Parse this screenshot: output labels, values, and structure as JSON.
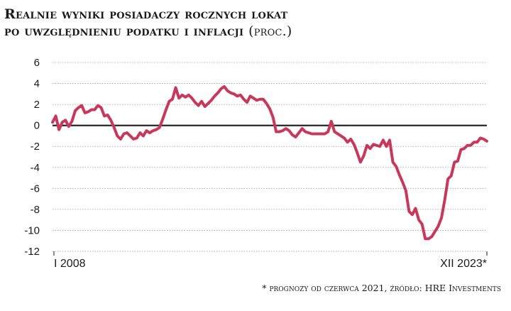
{
  "chart_data": {
    "type": "line",
    "title_line1": "Realnie wyniki posiadaczy rocznych lokat",
    "title_line2": "po uwzględnieniu podatku i inflacji",
    "title_unit": "(proc.)",
    "x_start_label": "I 2008",
    "x_end_label": "XII 2023*",
    "footnote": "* prognozy od czerwca 2021, źródło: HRE Investments",
    "ylim": [
      -12,
      6
    ],
    "yticks": [
      "6",
      "4",
      "2",
      "0",
      "-2",
      "-4",
      "-6",
      "-8",
      "-10",
      "-12"
    ],
    "grid": true,
    "line_color": "#c8385a",
    "zero_line_color": "#1a1a1a",
    "series": [
      {
        "values": [
          0.3,
          0.9,
          -0.4,
          0.3,
          0.5,
          -0.1,
          0.4,
          1.4,
          1.7,
          1.9,
          1.2,
          1.3,
          1.5,
          1.5,
          1.9,
          1.7,
          0.9,
          1.0,
          0.5,
          -0.2,
          -1.0,
          -1.3,
          -0.8,
          -0.7,
          -1.0,
          -1.3,
          -1.2,
          -0.7,
          -1.0,
          -0.5,
          -0.7,
          -0.5,
          -0.4,
          -0.2,
          0.6,
          1.5,
          2.3,
          2.5,
          3.6,
          2.6,
          2.9,
          2.7,
          2.9,
          2.6,
          2.2,
          1.9,
          2.3,
          1.8,
          2.1,
          2.4,
          2.8,
          3.1,
          3.5,
          3.7,
          3.3,
          3.1,
          3.0,
          2.8,
          2.9,
          2.5,
          2.2,
          2.8,
          2.6,
          2.4,
          2.5,
          2.5,
          2.1,
          1.6,
          0.8,
          -0.6,
          -0.6,
          -0.5,
          -0.3,
          -0.5,
          -0.9,
          -1.1,
          -0.7,
          -0.3,
          -0.6,
          -0.7,
          -0.8,
          -0.8,
          -0.8,
          -0.8,
          -0.8,
          -0.6,
          0.4,
          -0.6,
          -0.8,
          -1.0,
          -1.2,
          -1.6,
          -1.3,
          -1.8,
          -2.6,
          -3.5,
          -2.9,
          -1.9,
          -2.2,
          -1.8,
          -1.9,
          -2.0,
          -1.4,
          -2.0,
          -1.4,
          -3.5,
          -3.9,
          -4.7,
          -5.4,
          -6.2,
          -8.2,
          -8.5,
          -7.9,
          -9.0,
          -9.4,
          -10.8,
          -10.8,
          -10.6,
          -10.1,
          -9.6,
          -8.8,
          -7.1,
          -5.1,
          -4.8,
          -3.5,
          -3.4,
          -2.3,
          -2.2,
          -1.9,
          -1.9,
          -1.6,
          -1.6,
          -1.2,
          -1.3,
          -1.5
        ]
      }
    ]
  }
}
